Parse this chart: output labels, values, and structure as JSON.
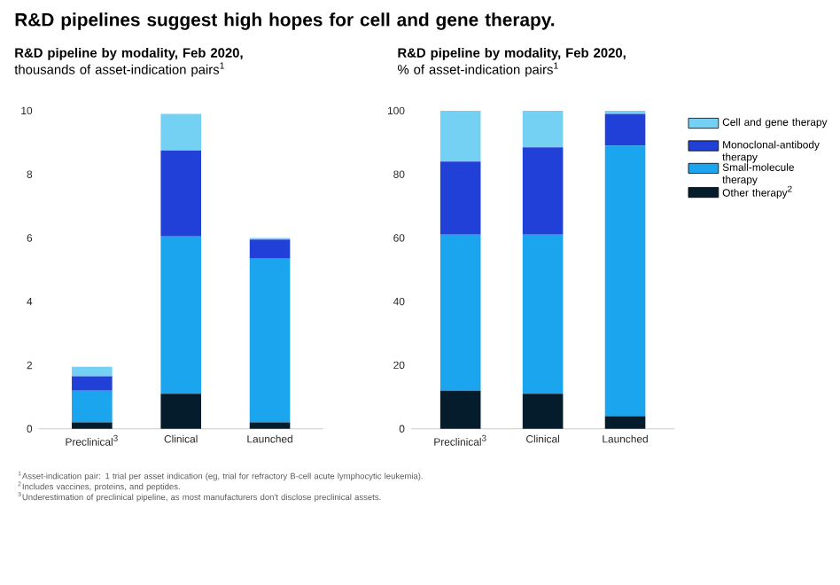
{
  "chart_data": [
    {
      "type": "bar",
      "stacked": true,
      "title": "R&D pipeline by modality, Feb 2020,",
      "subtitle": "thousands of asset-indication pairs$^{1}$",
      "annotations": [
        "**R&D pipelines suggest high hopes for cell and gene therapy.**",
        "$^{1}$Asset-indication pair: 1 trial per asset indication (eg, trial for refractory B-cell acute lymphocytic leukemia).",
        "$^{2}$Includes vaccines, proteins, and peptides.",
        "$^{3}$Underestimation of preclinical pipeline, as most manufacturers don't disclose preclinical assets."
      ],
      "categories": [
        "Preclinical$^{3}$",
        "Clinical",
        "Launched"
      ],
      "ylim": [
        0,
        10
      ],
      "yticks": [
        0,
        2,
        4,
        6,
        8,
        10
      ],
      "series": [
        {
          "color": "#051c2c",
          "values": [
            0.2,
            1.1,
            0.2
          ]
        },
        {
          "color": "#1aa5ee",
          "values": [
            1.0,
            4.95,
            5.15
          ]
        },
        {
          "color": "#2140d8",
          "values": [
            0.45,
            2.7,
            0.6
          ]
        },
        {
          "color": "#75d1f3",
          "values": [
            0.3,
            1.15,
            0.05
          ]
        }
      ]
    },
    {
      "type": "bar",
      "stacked": true,
      "title": "R&D pipeline by modality, Feb 2020,",
      "subtitle": "% of asset-indication pairs$^{1}$",
      "categories": [
        "Preclinical$^{3}$",
        "Clinical",
        "Launched"
      ],
      "ylim": [
        0,
        100
      ],
      "yticks": [
        0,
        20,
        40,
        60,
        80,
        100
      ],
      "legend": "right",
      "series": [
        {
          "name": "Other therapy$^{2}$",
          "color": "#051c2c",
          "values": [
            12,
            11,
            4
          ]
        },
        {
          "name": "Small-molecule therapy",
          "color": "#1aa5ee",
          "values": [
            49,
            50,
            85
          ]
        },
        {
          "name": "Monoclonal-antibody therapy",
          "color": "#2140d8",
          "values": [
            23,
            27.5,
            10
          ]
        },
        {
          "name": "Cell and gene therapy",
          "color": "#75d1f3",
          "values": [
            16,
            11.5,
            1
          ]
        }
      ]
    }
  ]
}
